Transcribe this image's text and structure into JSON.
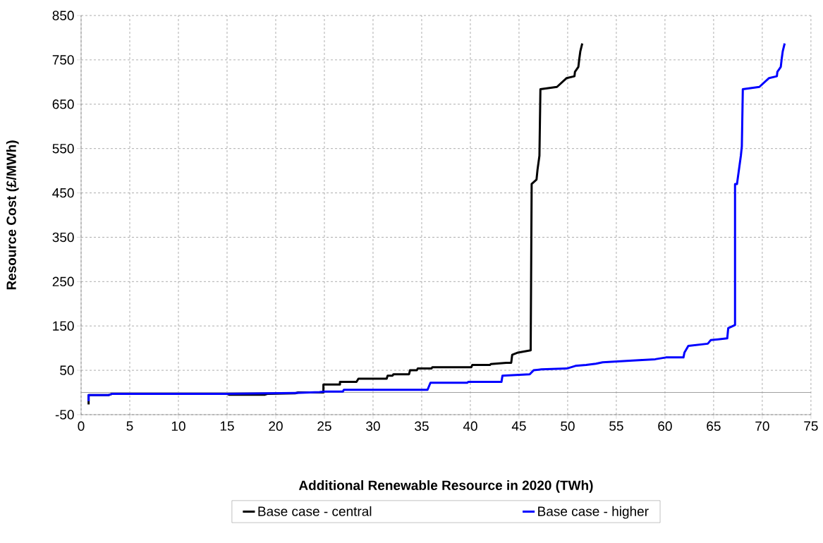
{
  "chart_data": {
    "type": "line",
    "xlabel": "Additional Renewable Resource in 2020 (TWh)",
    "ylabel": "Resource Cost (£/MWh)",
    "xlim": [
      0,
      75
    ],
    "ylim": [
      -50,
      850
    ],
    "xticks": [
      0,
      5,
      10,
      15,
      20,
      25,
      30,
      35,
      40,
      45,
      50,
      55,
      60,
      65,
      70,
      75
    ],
    "yticks": [
      -50,
      50,
      150,
      250,
      350,
      450,
      550,
      650,
      750,
      850
    ],
    "grid": true,
    "legend": "bottom",
    "marker": "none",
    "line_style": "solid",
    "ref_lines": [
      {
        "axis": "y",
        "value": 0,
        "color": "#a0a0a0"
      }
    ],
    "series": [
      {
        "name": "Base case - central",
        "color": "#000000",
        "x": [
          0.77,
          0.77,
          2.8,
          3.2,
          15,
          15.2,
          18.9,
          19.2,
          22,
          22.3,
          24.9,
          24.9,
          26.6,
          26.6,
          28.3,
          28.5,
          31.4,
          31.5,
          32.0,
          32.1,
          33.7,
          33.8,
          34.5,
          34.6,
          36.0,
          36.1,
          40.1,
          40.2,
          42.0,
          42.1,
          43.7,
          44.2,
          44.3,
          44.9,
          46.2,
          46.3,
          46.8,
          46.9,
          47.1,
          47.2,
          48.9,
          49.9,
          50.7,
          50.75,
          51.1,
          51.2,
          51.3,
          51.5
        ],
        "values": [
          -27,
          -6,
          -6,
          -3,
          -3,
          -5,
          -5,
          -3,
          -2,
          0,
          0,
          18,
          18,
          24,
          24,
          31,
          31,
          38,
          38,
          41,
          41,
          50,
          50,
          54,
          54,
          57,
          57,
          62,
          62,
          64,
          67,
          67,
          85,
          90,
          95,
          470,
          480,
          502,
          534,
          684,
          689,
          709,
          713,
          723,
          734,
          753,
          769,
          787
        ]
      },
      {
        "name": "Base case - higher",
        "color": "#0000ff",
        "x": [
          0.77,
          0.77,
          2.8,
          3.2,
          15,
          19,
          22,
          24.5,
          25,
          26.9,
          27.0,
          35.6,
          35.9,
          39.7,
          39.8,
          43.2,
          43.3,
          46.1,
          46.5,
          47.3,
          49.9,
          50.8,
          51.9,
          52.9,
          53.6,
          56.7,
          59.0,
          60.1,
          61.9,
          62.0,
          62.4,
          64.4,
          64.7,
          66.4,
          66.5,
          67.2,
          67.2,
          67.4,
          67.6,
          67.8,
          67.9,
          68.0,
          69.7,
          70.7,
          71.5,
          71.55,
          71.9,
          72.0,
          72.1,
          72.3
        ],
        "values": [
          -20,
          -6,
          -6,
          -3,
          -3,
          -2,
          -1,
          1,
          2,
          2,
          6,
          6,
          22,
          22,
          24,
          24,
          38,
          41,
          50,
          52,
          54,
          60,
          62,
          65,
          68,
          72,
          75,
          79,
          79,
          90,
          105,
          110,
          118,
          122,
          145,
          152,
          470,
          470,
          502,
          534,
          555,
          684,
          689,
          709,
          713,
          723,
          734,
          753,
          769,
          787
        ]
      }
    ]
  }
}
